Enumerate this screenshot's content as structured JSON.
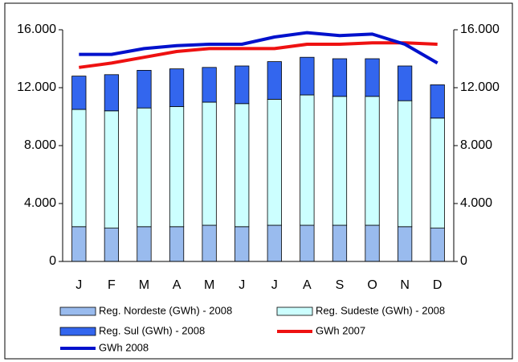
{
  "chart_data": {
    "type": "bar",
    "categories": [
      "J",
      "F",
      "M",
      "A",
      "M",
      "J",
      "J",
      "A",
      "S",
      "O",
      "N",
      "D"
    ],
    "stacked": true,
    "series": [
      {
        "name": "Reg. Nordeste (GWh) - 2008",
        "type": "bar",
        "color": "#99bbee",
        "values": [
          2400,
          2300,
          2400,
          2400,
          2500,
          2400,
          2500,
          2500,
          2500,
          2500,
          2400,
          2300
        ]
      },
      {
        "name": "Reg. Sudeste (GWh) - 2008",
        "type": "bar",
        "color": "#ccffff",
        "values": [
          8100,
          8100,
          8200,
          8300,
          8500,
          8500,
          8700,
          9000,
          8900,
          8900,
          8700,
          7600
        ]
      },
      {
        "name": "Reg. Sul (GWh) - 2008",
        "type": "bar",
        "color": "#3366ee",
        "values": [
          2300,
          2500,
          2600,
          2600,
          2400,
          2600,
          2600,
          2600,
          2600,
          2600,
          2400,
          2300
        ]
      },
      {
        "name": "GWh 2007",
        "type": "line",
        "color": "#ee1111",
        "values": [
          13400,
          13700,
          14100,
          14500,
          14700,
          14700,
          14700,
          15000,
          15000,
          15100,
          15100,
          15000
        ]
      },
      {
        "name": "GWh 2008",
        "type": "line",
        "color": "#0011cc",
        "values": [
          14300,
          14300,
          14700,
          14900,
          15000,
          15000,
          15500,
          15800,
          15600,
          15700,
          15000,
          13700
        ]
      }
    ],
    "ylim": [
      0,
      16000
    ],
    "yticks": [
      0,
      {
        "value": 4000,
        "label": "4.000"
      },
      {
        "value": 8000,
        "label": "8.000"
      },
      {
        "value": 12000,
        "label": "12.000"
      },
      {
        "value": 16000,
        "label": "16.000"
      }
    ],
    "y2lim": [
      0,
      16000
    ],
    "y2ticks": [
      0,
      {
        "value": 4000,
        "label": "4.000"
      },
      {
        "value": 8000,
        "label": "8.000"
      },
      {
        "value": 12000,
        "label": "12.000"
      },
      {
        "value": 16000,
        "label": "16.000"
      }
    ],
    "grid": false,
    "legend": "bottom"
  }
}
